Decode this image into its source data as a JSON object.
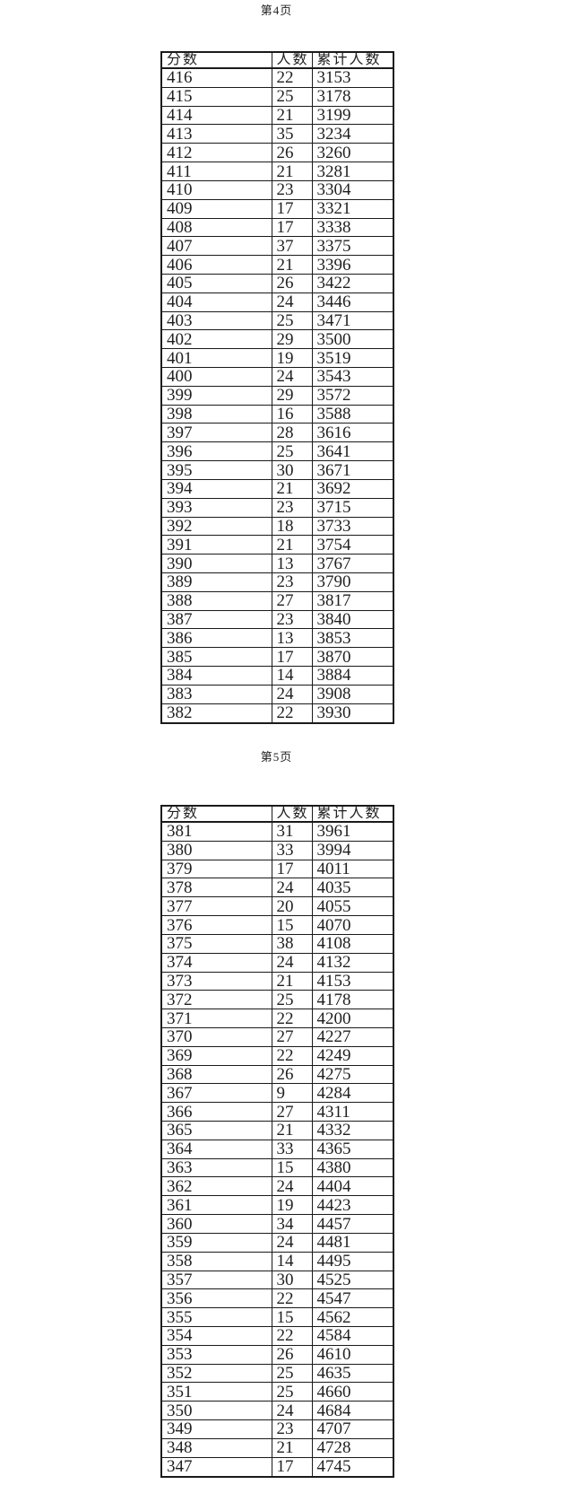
{
  "colors": {
    "text": "#1f1f1f",
    "border": "#1a1a1a",
    "background": "#ffffff"
  },
  "document": {
    "pages": [
      {
        "label": "第4页",
        "table": {
          "headers": [
            "分数",
            "人数",
            "累计人数"
          ],
          "rows": [
            [
              "416",
              "22",
              "3153"
            ],
            [
              "415",
              "25",
              "3178"
            ],
            [
              "414",
              "21",
              "3199"
            ],
            [
              "413",
              "35",
              "3234"
            ],
            [
              "412",
              "26",
              "3260"
            ],
            [
              "411",
              "21",
              "3281"
            ],
            [
              "410",
              "23",
              "3304"
            ],
            [
              "409",
              "17",
              "3321"
            ],
            [
              "408",
              "17",
              "3338"
            ],
            [
              "407",
              "37",
              "3375"
            ],
            [
              "406",
              "21",
              "3396"
            ],
            [
              "405",
              "26",
              "3422"
            ],
            [
              "404",
              "24",
              "3446"
            ],
            [
              "403",
              "25",
              "3471"
            ],
            [
              "402",
              "29",
              "3500"
            ],
            [
              "401",
              "19",
              "3519"
            ],
            [
              "400",
              "24",
              "3543"
            ],
            [
              "399",
              "29",
              "3572"
            ],
            [
              "398",
              "16",
              "3588"
            ],
            [
              "397",
              "28",
              "3616"
            ],
            [
              "396",
              "25",
              "3641"
            ],
            [
              "395",
              "30",
              "3671"
            ],
            [
              "394",
              "21",
              "3692"
            ],
            [
              "393",
              "23",
              "3715"
            ],
            [
              "392",
              "18",
              "3733"
            ],
            [
              "391",
              "21",
              "3754"
            ],
            [
              "390",
              "13",
              "3767"
            ],
            [
              "389",
              "23",
              "3790"
            ],
            [
              "388",
              "27",
              "3817"
            ],
            [
              "387",
              "23",
              "3840"
            ],
            [
              "386",
              "13",
              "3853"
            ],
            [
              "385",
              "17",
              "3870"
            ],
            [
              "384",
              "14",
              "3884"
            ],
            [
              "383",
              "24",
              "3908"
            ],
            [
              "382",
              "22",
              "3930"
            ]
          ]
        }
      },
      {
        "label": "第5页",
        "table": {
          "headers": [
            "分数",
            "人数",
            "累计人数"
          ],
          "rows": [
            [
              "381",
              "31",
              "3961"
            ],
            [
              "380",
              "33",
              "3994"
            ],
            [
              "379",
              "17",
              "4011"
            ],
            [
              "378",
              "24",
              "4035"
            ],
            [
              "377",
              "20",
              "4055"
            ],
            [
              "376",
              "15",
              "4070"
            ],
            [
              "375",
              "38",
              "4108"
            ],
            [
              "374",
              "24",
              "4132"
            ],
            [
              "373",
              "21",
              "4153"
            ],
            [
              "372",
              "25",
              "4178"
            ],
            [
              "371",
              "22",
              "4200"
            ],
            [
              "370",
              "27",
              "4227"
            ],
            [
              "369",
              "22",
              "4249"
            ],
            [
              "368",
              "26",
              "4275"
            ],
            [
              "367",
              "9",
              "4284"
            ],
            [
              "366",
              "27",
              "4311"
            ],
            [
              "365",
              "21",
              "4332"
            ],
            [
              "364",
              "33",
              "4365"
            ],
            [
              "363",
              "15",
              "4380"
            ],
            [
              "362",
              "24",
              "4404"
            ],
            [
              "361",
              "19",
              "4423"
            ],
            [
              "360",
              "34",
              "4457"
            ],
            [
              "359",
              "24",
              "4481"
            ],
            [
              "358",
              "14",
              "4495"
            ],
            [
              "357",
              "30",
              "4525"
            ],
            [
              "356",
              "22",
              "4547"
            ],
            [
              "355",
              "15",
              "4562"
            ],
            [
              "354",
              "22",
              "4584"
            ],
            [
              "353",
              "26",
              "4610"
            ],
            [
              "352",
              "25",
              "4635"
            ],
            [
              "351",
              "25",
              "4660"
            ],
            [
              "350",
              "24",
              "4684"
            ],
            [
              "349",
              "23",
              "4707"
            ],
            [
              "348",
              "21",
              "4728"
            ],
            [
              "347",
              "17",
              "4745"
            ]
          ]
        }
      }
    ]
  }
}
